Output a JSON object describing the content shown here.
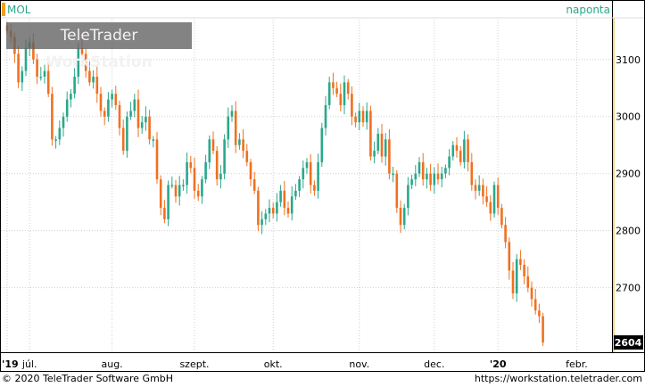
{
  "header": {
    "symbol": "MOL",
    "period": "naponta"
  },
  "watermark": {
    "brand_regular": "TeleTrader",
    "brand_bold": "WorkStation"
  },
  "footer": {
    "copyright": "© 2020 TeleTrader Software GmbH",
    "url": "https://workstation.teletrader.com"
  },
  "colors": {
    "up": "#2aa88a",
    "down": "#f07020",
    "symbol_marker": "#f0a020",
    "accent_text": "#2aa88a"
  },
  "chart_data": {
    "type": "candlestick",
    "title": "",
    "ylim": [
      2590,
      3170
    ],
    "y_ticks": [
      2700,
      2800,
      2900,
      3000,
      3100
    ],
    "y_tick_labels": [
      "2700",
      "2800",
      "2900",
      "3000",
      "3100"
    ],
    "last_value": 2604,
    "last_value_label": "2604",
    "grid": true,
    "x_labels": [
      {
        "label": "'19",
        "bold": true,
        "at": 0
      },
      {
        "label": "júl.",
        "bold": false,
        "at": 6
      },
      {
        "label": "aug.",
        "bold": false,
        "at": 28
      },
      {
        "label": "szept.",
        "bold": false,
        "at": 50
      },
      {
        "label": "okt.",
        "bold": false,
        "at": 71
      },
      {
        "label": "nov.",
        "bold": false,
        "at": 94
      },
      {
        "label": "dec.",
        "bold": false,
        "at": 114
      },
      {
        "label": "'20",
        "bold": true,
        "at": 131
      },
      {
        "label": "febr.",
        "bold": false,
        "at": 152
      }
    ],
    "closes": [
      3150,
      3140,
      3110,
      3060,
      3080,
      3120,
      3130,
      3100,
      3070,
      3070,
      3080,
      3040,
      2960,
      2960,
      2980,
      3000,
      3030,
      3040,
      3070,
      3120,
      3110,
      3080,
      3060,
      3070,
      3040,
      3010,
      3000,
      3030,
      3040,
      3020,
      2980,
      2940,
      3000,
      3010,
      3030,
      2980,
      2990,
      3000,
      2960,
      2960,
      2890,
      2840,
      2820,
      2880,
      2880,
      2860,
      2880,
      2880,
      2920,
      2910,
      2870,
      2860,
      2890,
      2920,
      2960,
      2940,
      2890,
      2900,
      2960,
      3000,
      3010,
      2950,
      2960,
      2940,
      2920,
      2890,
      2870,
      2810,
      2820,
      2830,
      2840,
      2830,
      2850,
      2870,
      2840,
      2830,
      2860,
      2870,
      2890,
      2910,
      2920,
      2880,
      2870,
      2920,
      2980,
      3020,
      3060,
      3050,
      3040,
      3020,
      3060,
      3040,
      3000,
      2990,
      3010,
      2990,
      3010,
      2930,
      2940,
      2970,
      2930,
      2960,
      2900,
      2900,
      2840,
      2810,
      2840,
      2880,
      2890,
      2900,
      2920,
      2890,
      2900,
      2880,
      2900,
      2890,
      2900,
      2910,
      2930,
      2950,
      2940,
      2920,
      2960,
      2920,
      2880,
      2870,
      2880,
      2860,
      2850,
      2830,
      2880,
      2840,
      2810,
      2780,
      2730,
      2690,
      2750,
      2740,
      2720,
      2700,
      2680,
      2660,
      2650,
      2604
    ],
    "series": [
      {
        "name": "MOL",
        "values": "closes"
      }
    ]
  }
}
